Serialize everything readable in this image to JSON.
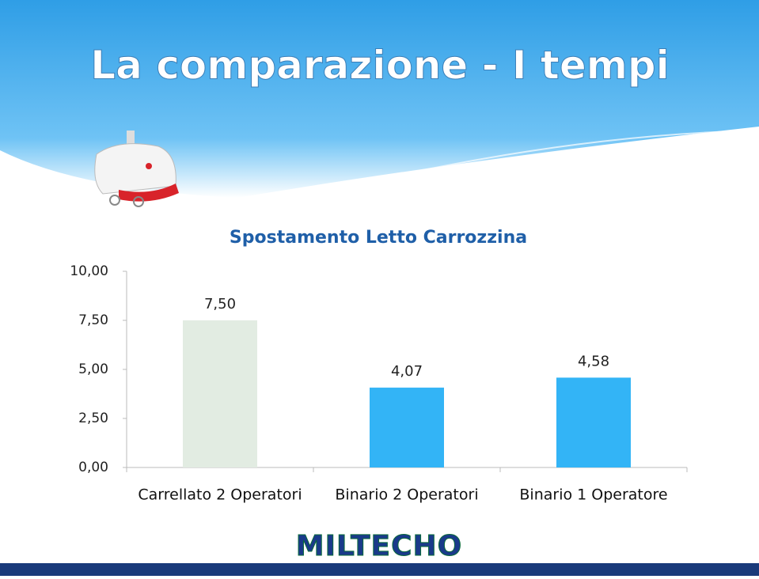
{
  "slide_title": "La comparazione - I tempi",
  "logo": "MILTECHO",
  "chart_data": {
    "type": "bar",
    "title": "Spostamento Letto Carrozzina",
    "categories": [
      "Carrellato 2 Operatori",
      "Binario 2 Operatori",
      "Binario 1 Operatore"
    ],
    "values": [
      7.5,
      4.07,
      4.58
    ],
    "value_labels": [
      "7,50",
      "4,07",
      "4,58"
    ],
    "colors": [
      "#e2ece2",
      "#33b4f6",
      "#33b4f6"
    ],
    "ylim": [
      0,
      10
    ],
    "yticks": [
      {
        "value": 0,
        "label": "0,00"
      },
      {
        "value": 2.5,
        "label": "2,50"
      },
      {
        "value": 5,
        "label": "5,00"
      },
      {
        "value": 7.5,
        "label": "7,50"
      },
      {
        "value": 10,
        "label": "10,00"
      }
    ]
  }
}
